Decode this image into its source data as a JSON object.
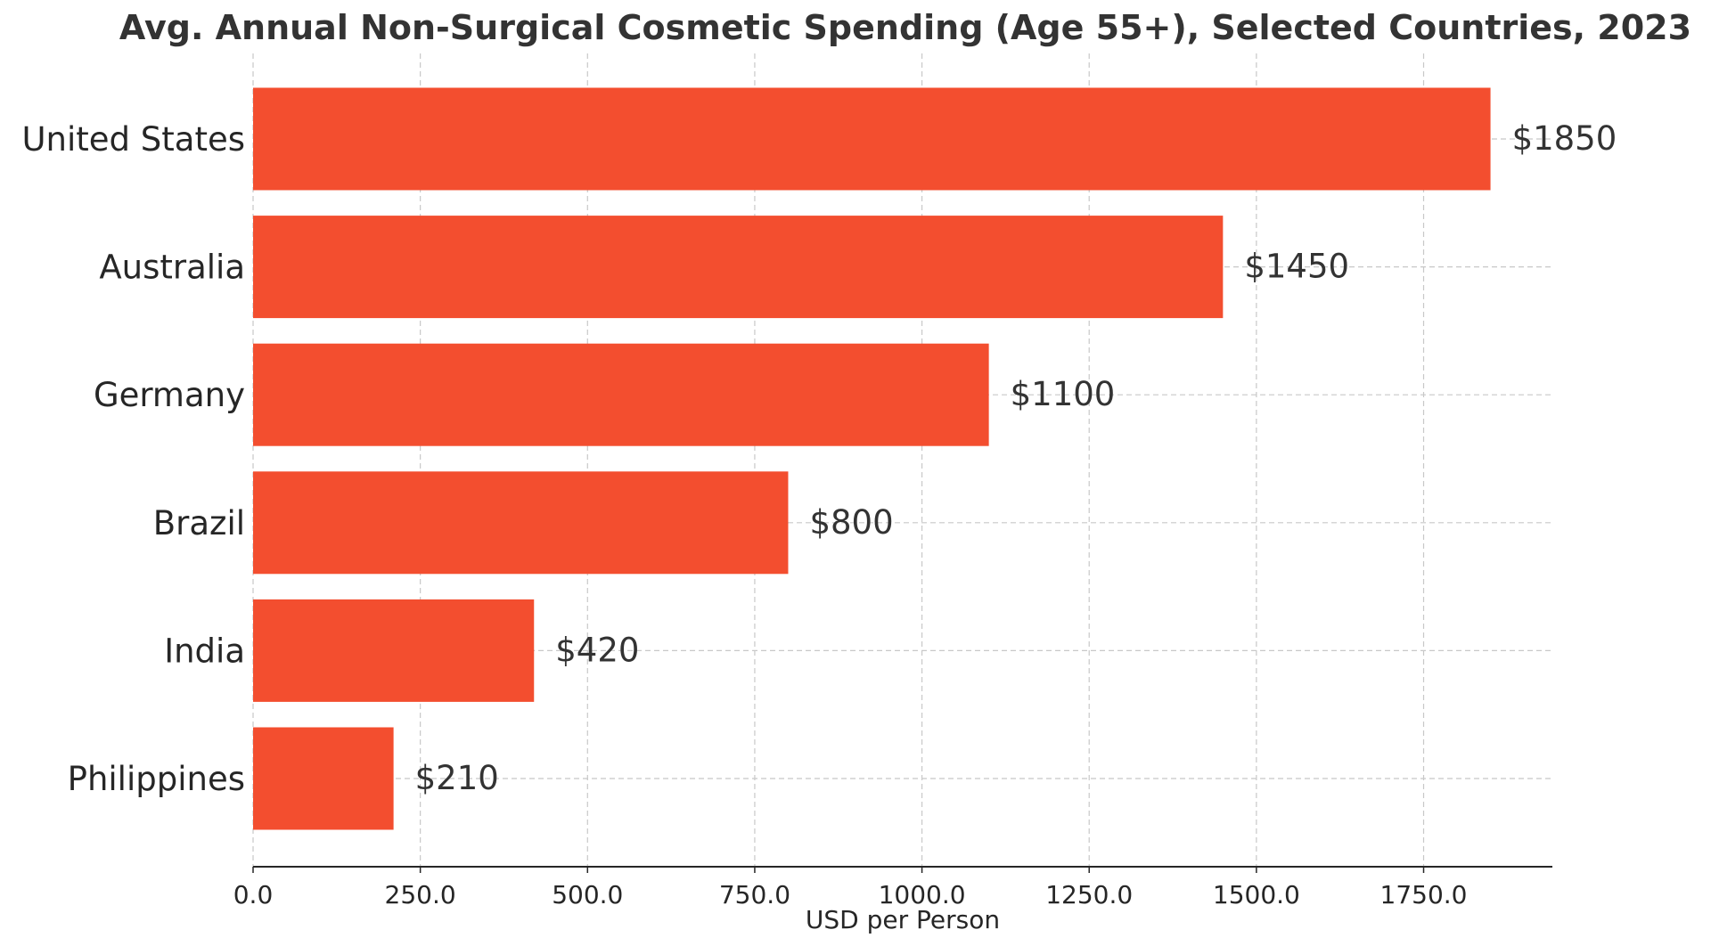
{
  "chart_data": {
    "type": "bar",
    "orientation": "horizontal",
    "title": "Avg. Annual Non-Surgical Cosmetic Spending (Age 55+), Selected Countries, 2023",
    "xlabel": "USD per Person",
    "ylabel": "",
    "categories": [
      "United States",
      "Australia",
      "Germany",
      "Brazil",
      "India",
      "Philippines"
    ],
    "values": [
      1850,
      1450,
      1100,
      800,
      420,
      210
    ],
    "value_labels": [
      "$1850",
      "$1450",
      "$1100",
      "$800",
      "$420",
      "$210"
    ],
    "xlim": [
      0,
      1942.5
    ],
    "xticks": [
      0,
      250,
      500,
      750,
      1000,
      1250,
      1500,
      1750
    ],
    "xtick_labels": [
      "0.0",
      "250.0",
      "500.0",
      "750.0",
      "1000.0",
      "1250.0",
      "1500.0",
      "1750.0"
    ],
    "grid": true,
    "bar_color": "#f34e2f"
  }
}
